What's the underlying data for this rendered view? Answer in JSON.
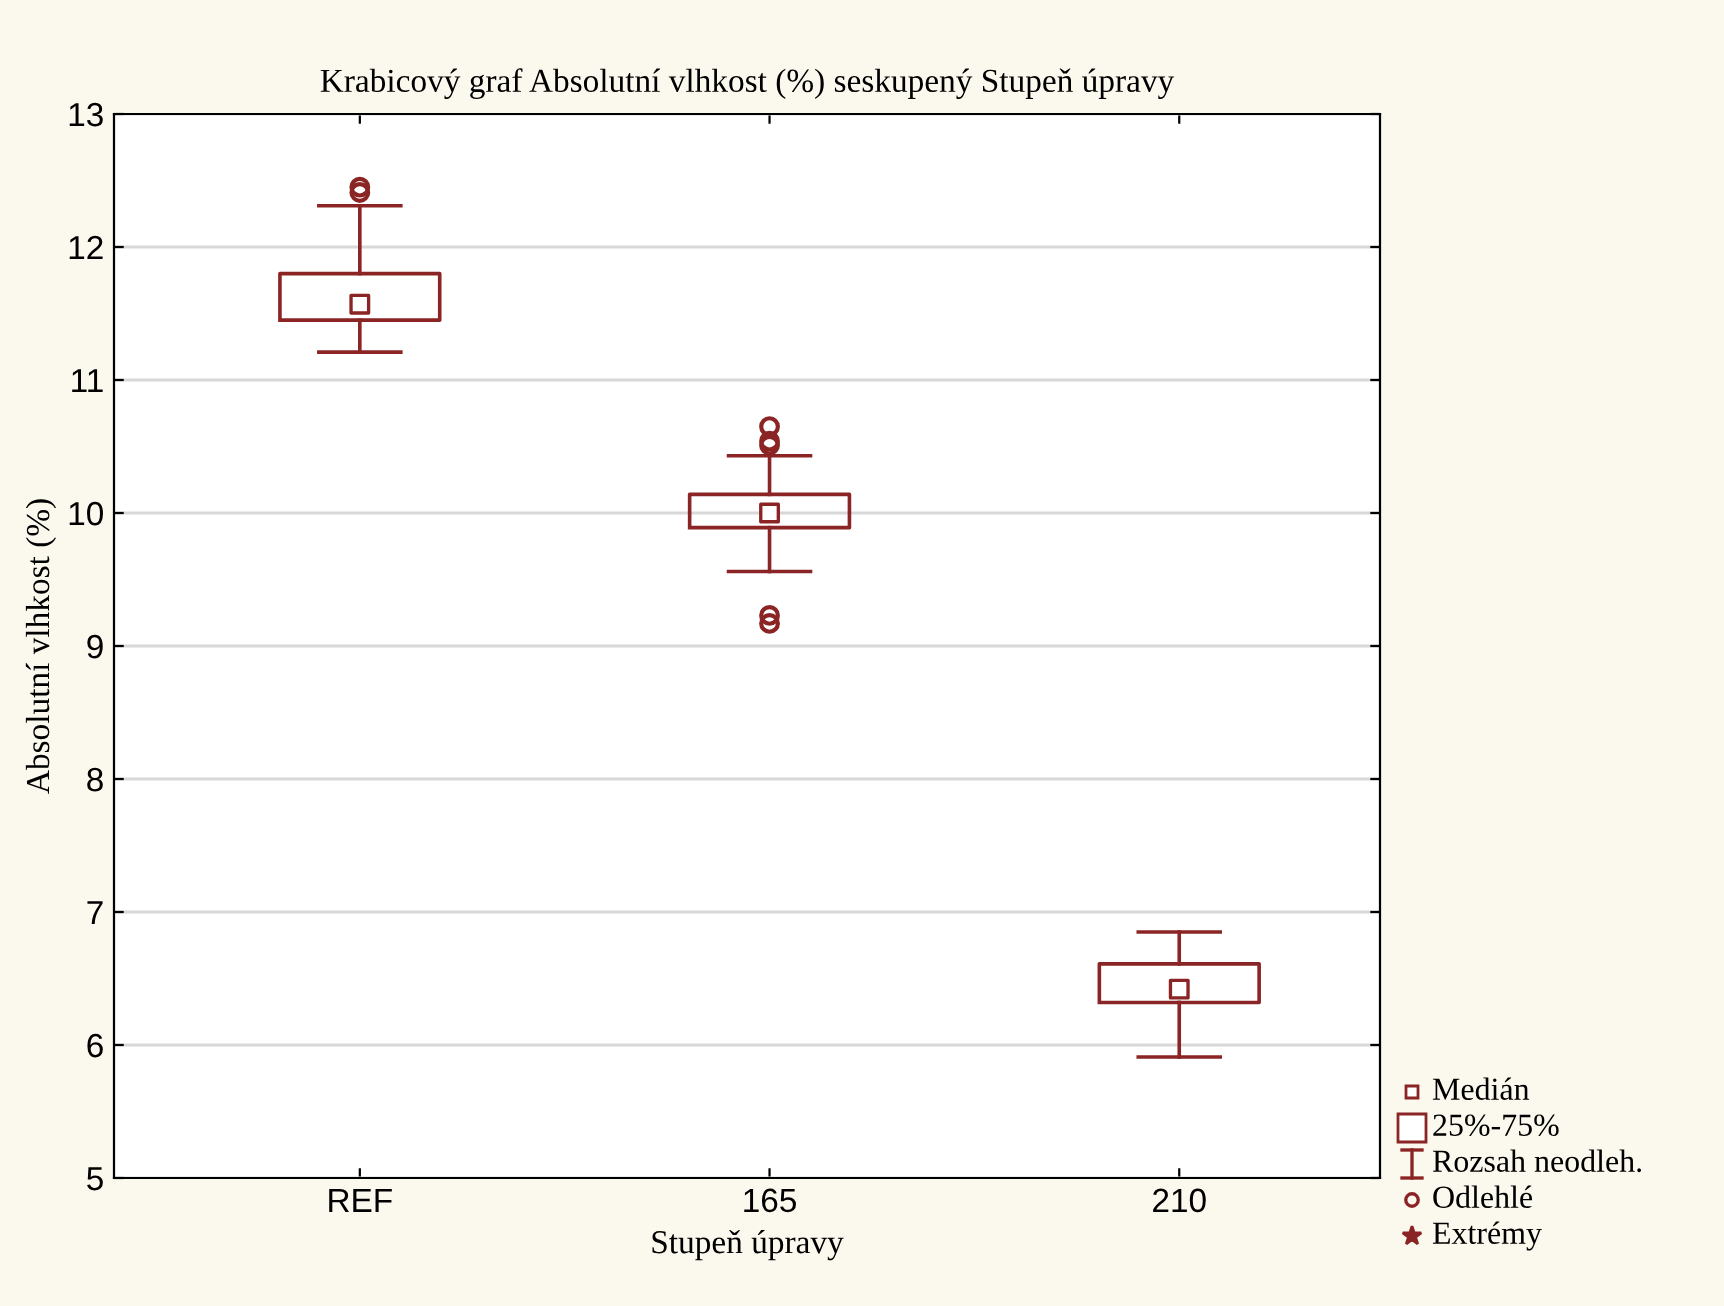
{
  "chart_data": {
    "type": "box",
    "title": "Krabicový graf Absolutní vlhkost (%) seskupený Stupeň úpravy",
    "xlabel": "Stupeň úpravy",
    "ylabel": "Absolutní vlhkost (%)",
    "categories": [
      "REF",
      "165",
      "210"
    ],
    "series": [
      {
        "color": "#8b2525",
        "boxes": [
          {
            "low": 11.21,
            "q1": 11.45,
            "median": 11.57,
            "q3": 11.8,
            "high": 12.31,
            "outliers": [
              12.41,
              12.45
            ]
          },
          {
            "low": 9.56,
            "q1": 9.89,
            "median": 10.0,
            "q3": 10.14,
            "high": 10.43,
            "outliers": [
              10.51,
              10.54,
              10.65,
              9.23,
              9.17
            ]
          },
          {
            "low": 5.91,
            "q1": 6.32,
            "median": 6.42,
            "q3": 6.61,
            "high": 6.85
          }
        ]
      }
    ],
    "ylim": [
      5,
      13
    ],
    "yticks": [
      5,
      6,
      7,
      8,
      9,
      10,
      11,
      12,
      13
    ],
    "grid": "y",
    "annotations": [
      "Medián",
      "25%-75%",
      "Rozsah neodleh.",
      "Odlehlé",
      "Extrémy"
    ]
  }
}
